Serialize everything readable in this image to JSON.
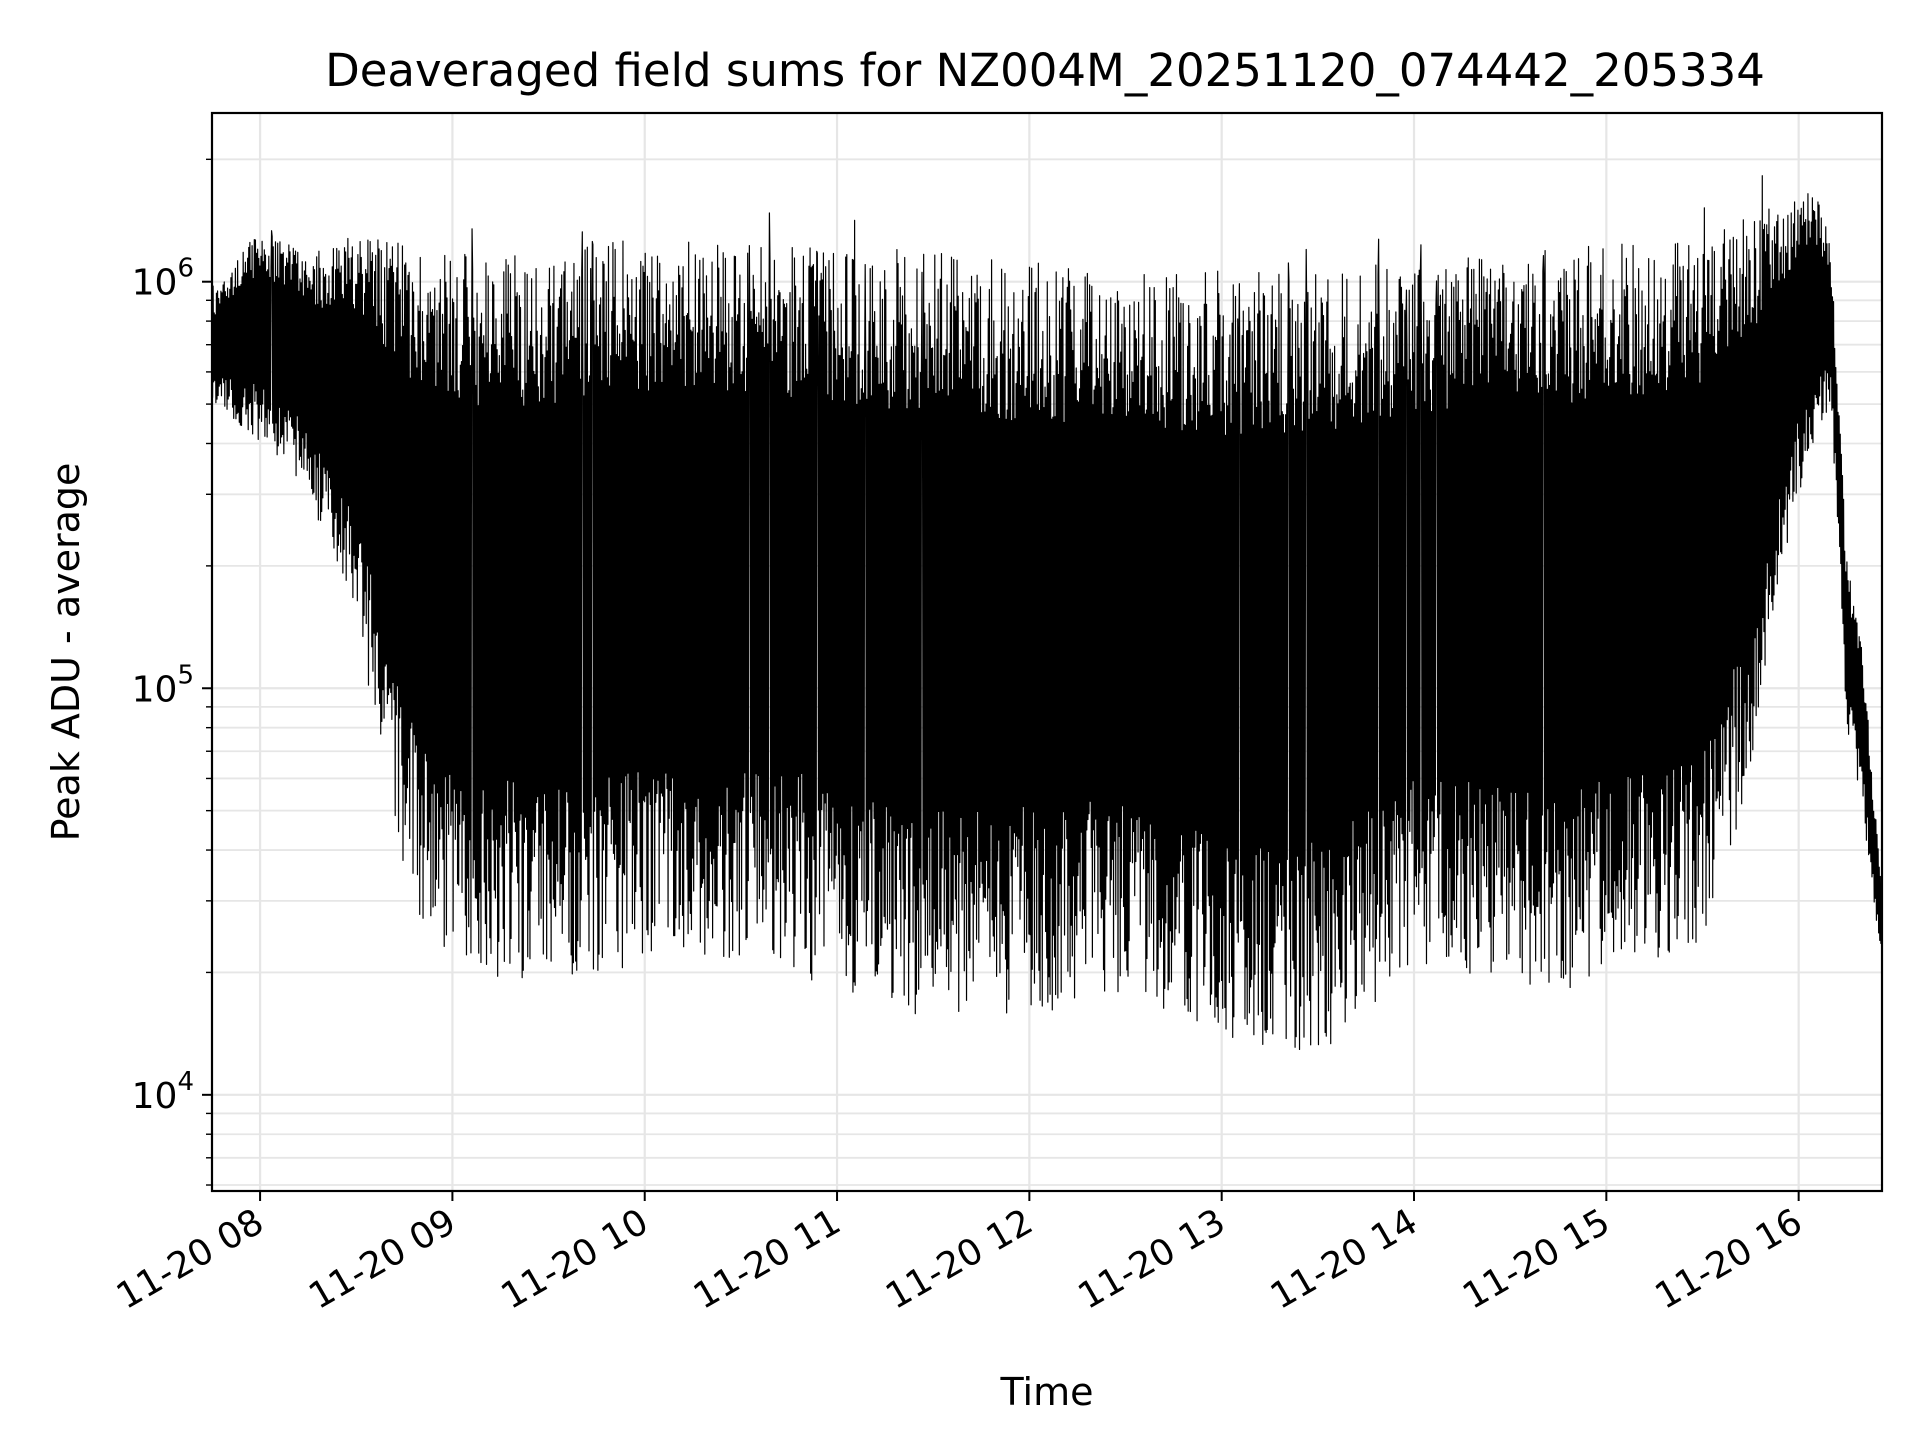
{
  "chart_data": {
    "type": "line",
    "title": "Deaveraged field sums for NZ004M_20251120_074442_205334",
    "xlabel": "Time",
    "ylabel": "Peak ADU - average",
    "yscale": "log",
    "ylim": [
      5800,
      2600000
    ],
    "xlim": [
      "2025-11-20 07:45:00",
      "2025-11-20 16:26:00"
    ],
    "grid": true,
    "line_color": "#000000",
    "x_ticks": [
      "11-20 08",
      "11-20 09",
      "11-20 10",
      "11-20 11",
      "11-20 12",
      "11-20 13",
      "11-20 14",
      "11-20 15",
      "11-20 16"
    ],
    "x_tick_times": [
      "2025-11-20 08:00",
      "2025-11-20 09:00",
      "2025-11-20 10:00",
      "2025-11-20 11:00",
      "2025-11-20 12:00",
      "2025-11-20 13:00",
      "2025-11-20 14:00",
      "2025-11-20 15:00",
      "2025-11-20 16:00"
    ],
    "y_ticks": [
      {
        "base": "10",
        "exp": "4",
        "value": 10000
      },
      {
        "base": "10",
        "exp": "5",
        "value": 100000
      },
      {
        "base": "10",
        "exp": "6",
        "value": 1000000
      }
    ],
    "series": [
      {
        "x": [
          "2025-11-20 07:45",
          "2025-11-20 08:00",
          "2025-11-20 08:15",
          "2025-11-20 08:30",
          "2025-11-20 08:45",
          "2025-11-20 09:00",
          "2025-11-20 09:30",
          "2025-11-20 10:00",
          "2025-11-20 10:30",
          "2025-11-20 11:00",
          "2025-11-20 11:30",
          "2025-11-20 12:00",
          "2025-11-20 12:30",
          "2025-11-20 13:00",
          "2025-11-20 13:30",
          "2025-11-20 14:00",
          "2025-11-20 14:30",
          "2025-11-20 15:00",
          "2025-11-20 15:30",
          "2025-11-20 15:45",
          "2025-11-20 16:00",
          "2025-11-20 16:05",
          "2025-11-20 16:10",
          "2025-11-20 16:15",
          "2025-11-20 16:20",
          "2025-11-20 16:26"
        ],
        "y_high": [
          900000,
          1300000,
          1100000,
          1200000,
          1100000,
          1000000,
          1000000,
          1100000,
          1050000,
          1050000,
          1000000,
          950000,
          900000,
          900000,
          920000,
          950000,
          1000000,
          1050000,
          1100000,
          1300000,
          1500000,
          1600000,
          1200000,
          200000,
          120000,
          30000
        ],
        "y_low": [
          500000,
          400000,
          300000,
          150000,
          30000,
          20000,
          18000,
          20000,
          20000,
          18000,
          15000,
          15000,
          18000,
          12000,
          12000,
          20000,
          18000,
          18000,
          22000,
          60000,
          300000,
          400000,
          500000,
          80000,
          50000,
          20000
        ]
      }
    ]
  }
}
